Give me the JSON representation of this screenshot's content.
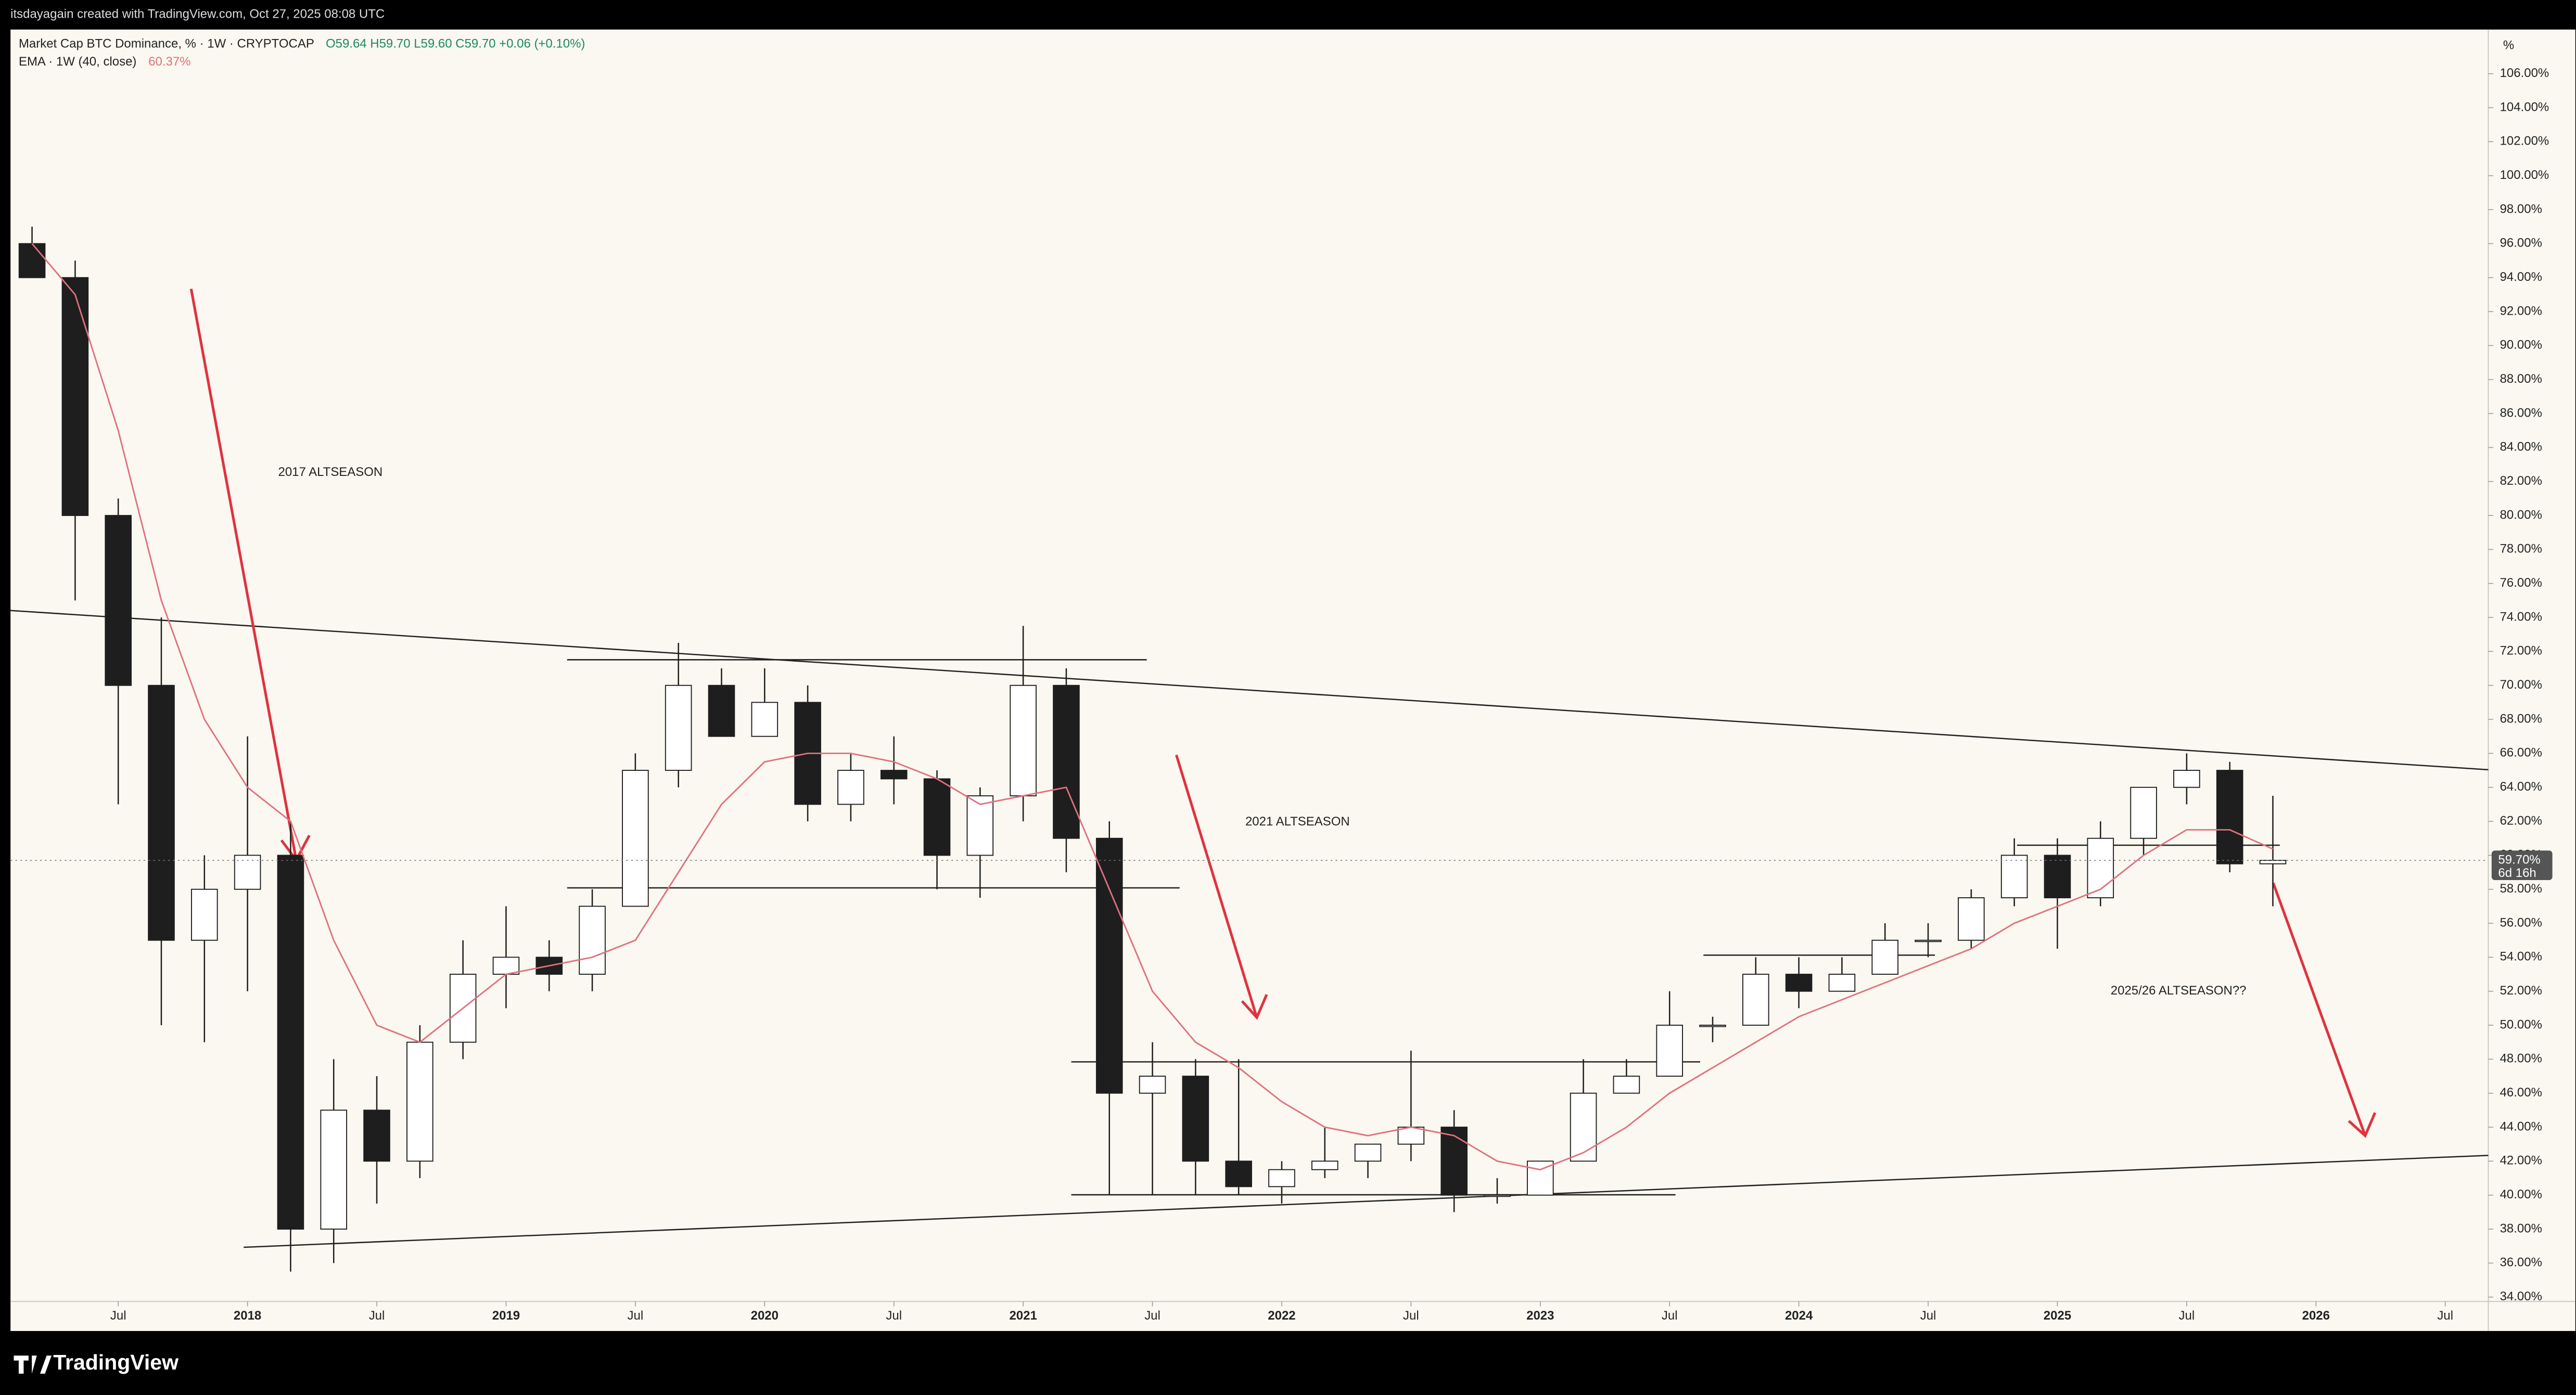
{
  "header": {
    "creator": "itsdayagain created with TradingView.com, Oct 27, 2025 08:08 UTC"
  },
  "footer": {
    "brand": "TradingView"
  },
  "annotations": [
    "2017 ALTSEASON",
    "2021 ALTSEASON",
    "2025/26 ALTSEASON??"
  ],
  "chart_data": {
    "type": "candlestick",
    "title": "Market Cap BTC Dominance, % · 1W · CRYPTOCAP",
    "legend_values": "O59.64 H59.70 L59.60 C59.70 +0.06 (+0.10%)",
    "y_unit": "%",
    "up_color": "#ffffff",
    "down_color": "#1e1e1e",
    "outline_color": "#1e1e1e",
    "x": [
      "2017-02",
      "2017-04",
      "2017-06",
      "2017-08",
      "2017-10",
      "2017-12",
      "2018-02",
      "2018-04",
      "2018-06",
      "2018-08",
      "2018-10",
      "2018-12",
      "2019-02",
      "2019-04",
      "2019-06",
      "2019-08",
      "2019-10",
      "2019-12",
      "2020-02",
      "2020-04",
      "2020-06",
      "2020-08",
      "2020-10",
      "2020-12",
      "2021-02",
      "2021-04",
      "2021-06",
      "2021-08",
      "2021-10",
      "2021-12",
      "2022-02",
      "2022-04",
      "2022-06",
      "2022-08",
      "2022-10",
      "2022-12",
      "2023-02",
      "2023-04",
      "2023-06",
      "2023-08",
      "2023-10",
      "2023-12",
      "2024-02",
      "2024-04",
      "2024-06",
      "2024-08",
      "2024-10",
      "2024-12",
      "2025-02",
      "2025-04",
      "2025-06",
      "2025-08",
      "2025-10"
    ],
    "open": [
      96,
      94,
      80,
      70,
      55,
      58,
      60,
      38,
      45,
      42,
      49,
      53,
      54,
      53,
      57,
      65,
      70,
      67,
      69,
      63,
      65,
      64.5,
      60,
      63.5,
      70,
      61,
      46,
      47,
      42,
      40.5,
      41.5,
      42,
      43,
      44,
      40,
      40,
      42,
      46,
      47,
      50,
      50,
      53,
      52,
      53,
      55,
      55,
      57.5,
      60,
      57.5,
      61,
      64,
      65,
      59.5
    ],
    "high": [
      97,
      95,
      81,
      74,
      60,
      67,
      62,
      48,
      47,
      50,
      55,
      57,
      55,
      58,
      66,
      72.5,
      71,
      71,
      70,
      66,
      67,
      65,
      64,
      73.5,
      71,
      62,
      49,
      48,
      48,
      42,
      44,
      43,
      48.5,
      45,
      41,
      42,
      48,
      48,
      52,
      50.5,
      54,
      54,
      54,
      56,
      56,
      58,
      61,
      61,
      62,
      64,
      66,
      65.5,
      63.5
    ],
    "low": [
      94,
      75,
      63,
      50,
      49,
      52,
      35.5,
      36,
      39.5,
      41,
      48,
      51,
      52,
      52,
      57,
      64,
      67,
      67,
      62,
      62,
      63,
      58,
      57.5,
      62,
      59,
      40,
      40,
      40,
      40,
      39.5,
      41,
      41,
      42,
      39,
      39.5,
      40,
      42,
      46,
      47,
      49,
      50,
      51,
      52,
      53,
      54,
      54.5,
      57,
      54.5,
      57,
      60,
      63,
      59,
      57
    ],
    "close": [
      94,
      80,
      70,
      55,
      58,
      60,
      38,
      45,
      42,
      49,
      53,
      54,
      53,
      57,
      65,
      70,
      67,
      69,
      63,
      65,
      64.5,
      60,
      63.5,
      70,
      61,
      46,
      47,
      42,
      40.5,
      41.5,
      42,
      43,
      44,
      40,
      40,
      42,
      46,
      47,
      50,
      50,
      53,
      52,
      53,
      55,
      55,
      57.5,
      60,
      57.5,
      61,
      64,
      65,
      59.5,
      59.7
    ],
    "overlays": [
      {
        "type": "line",
        "name": "EMA · 1W (40, close)",
        "color": "#e0707f",
        "value_label": "60.37%",
        "values": [
          96,
          93,
          85,
          75,
          68,
          64,
          62,
          55,
          50,
          49,
          51,
          53,
          53.5,
          54,
          55,
          59,
          63,
          65.5,
          66,
          66,
          65.5,
          64.5,
          63,
          63.5,
          64,
          58,
          52,
          49,
          47.5,
          45.5,
          44,
          43.5,
          44,
          43.5,
          42,
          41.5,
          42.5,
          44,
          46,
          47.5,
          49,
          50.5,
          51.5,
          52.5,
          53.5,
          54.5,
          56,
          57,
          58,
          60,
          61.5,
          61.5,
          60.37
        ]
      }
    ],
    "last_price_label": "59.70%",
    "countdown": "6d 16h",
    "xlim": [
      "2017-02",
      "2026-09"
    ],
    "xticks": [
      {
        "value": "2017-07",
        "label": "Jul"
      },
      {
        "value": "2018-01",
        "label": "2018"
      },
      {
        "value": "2018-07",
        "label": "Jul"
      },
      {
        "value": "2019-01",
        "label": "2019"
      },
      {
        "value": "2019-07",
        "label": "Jul"
      },
      {
        "value": "2020-01",
        "label": "2020"
      },
      {
        "value": "2020-07",
        "label": "Jul"
      },
      {
        "value": "2021-01",
        "label": "2021"
      },
      {
        "value": "2021-07",
        "label": "Jul"
      },
      {
        "value": "2022-01",
        "label": "2022"
      },
      {
        "value": "2022-07",
        "label": "Jul"
      },
      {
        "value": "2023-01",
        "label": "2023"
      },
      {
        "value": "2023-07",
        "label": "Jul"
      },
      {
        "value": "2024-01",
        "label": "2024"
      },
      {
        "value": "2024-07",
        "label": "Jul"
      },
      {
        "value": "2025-01",
        "label": "2025"
      },
      {
        "value": "2025-07",
        "label": "Jul"
      },
      {
        "value": "2026-01",
        "label": "2026"
      },
      {
        "value": "2026-07",
        "label": "Jul"
      }
    ],
    "ylim": [
      32.1,
      108.6
    ],
    "yticks": [
      {
        "value": 34,
        "label": "34.00%"
      },
      {
        "value": 36,
        "label": "36.00%"
      },
      {
        "value": 38,
        "label": "38.00%"
      },
      {
        "value": 40,
        "label": "40.00%"
      },
      {
        "value": 42,
        "label": "42.00%"
      },
      {
        "value": 44,
        "label": "44.00%"
      },
      {
        "value": 46,
        "label": "46.00%"
      },
      {
        "value": 48,
        "label": "48.00%"
      },
      {
        "value": 50,
        "label": "50.00%"
      },
      {
        "value": 52,
        "label": "52.00%"
      },
      {
        "value": 54,
        "label": "54.00%"
      },
      {
        "value": 56,
        "label": "56.00%"
      },
      {
        "value": 58,
        "label": "58.00%"
      },
      {
        "value": 60,
        "label": "60.00%"
      },
      {
        "value": 62,
        "label": "62.00%"
      },
      {
        "value": 64,
        "label": "64.00%"
      },
      {
        "value": 66,
        "label": "66.00%"
      },
      {
        "value": 68,
        "label": "68.00%"
      },
      {
        "value": 70,
        "label": "70.00%"
      },
      {
        "value": 72,
        "label": "72.00%"
      },
      {
        "value": 74,
        "label": "74.00%"
      },
      {
        "value": 76,
        "label": "76.00%"
      },
      {
        "value": 78,
        "label": "78.00%"
      },
      {
        "value": 80,
        "label": "80.00%"
      },
      {
        "value": 82,
        "label": "82.00%"
      },
      {
        "value": 84,
        "label": "84.00%"
      },
      {
        "value": 86,
        "label": "86.00%"
      },
      {
        "value": 88,
        "label": "88.00%"
      },
      {
        "value": 90,
        "label": "90.00%"
      },
      {
        "value": 92,
        "label": "92.00%"
      },
      {
        "value": 94,
        "label": "94.00%"
      },
      {
        "value": 96,
        "label": "96.00%"
      },
      {
        "value": 98,
        "label": "98.00%"
      },
      {
        "value": 100,
        "label": "100.00%"
      },
      {
        "value": 102,
        "label": "102.00%"
      },
      {
        "value": 104,
        "label": "104.00%"
      },
      {
        "value": 106,
        "label": "106.00%"
      }
    ]
  }
}
